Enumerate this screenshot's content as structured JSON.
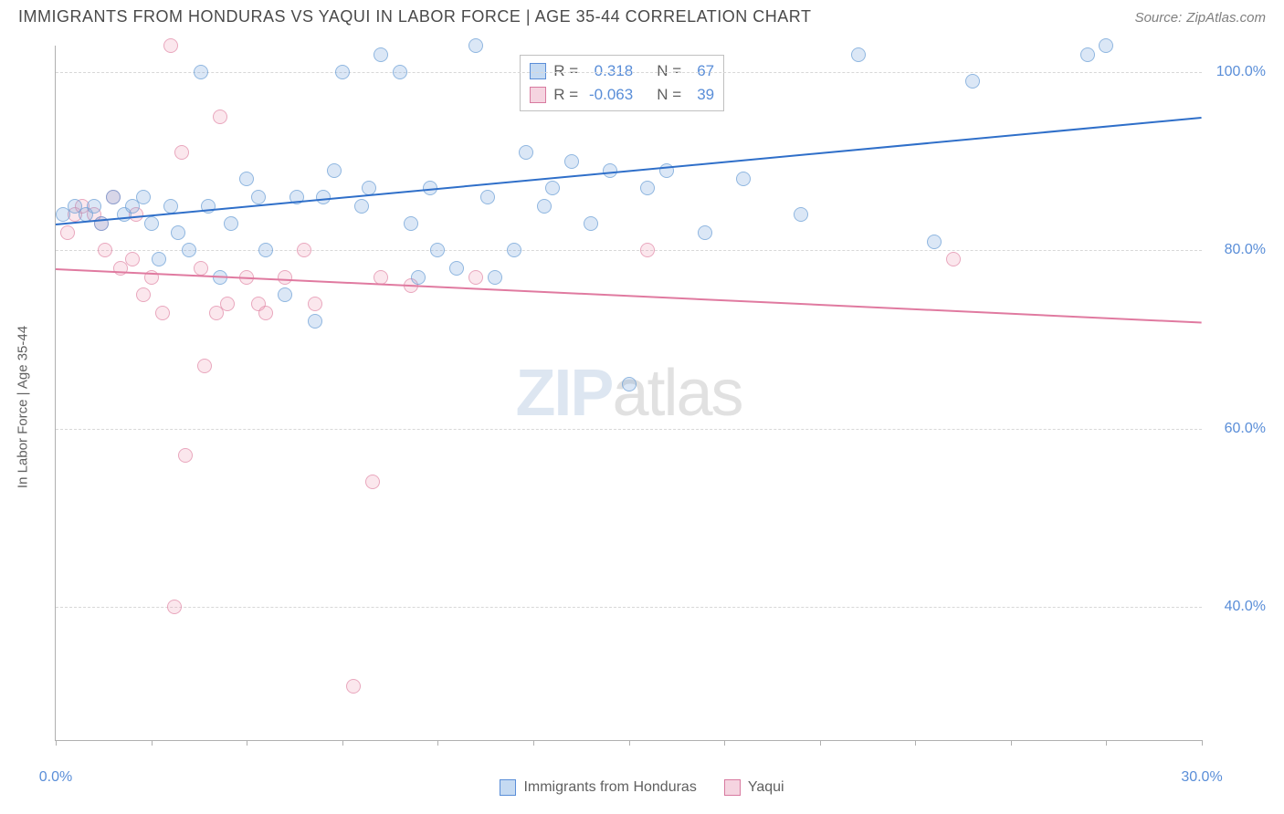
{
  "header": {
    "title": "IMMIGRANTS FROM HONDURAS VS YAQUI IN LABOR FORCE | AGE 35-44 CORRELATION CHART",
    "source_label": "Source:",
    "source_name": "ZipAtlas.com"
  },
  "chart": {
    "type": "scatter",
    "y_axis_title": "In Labor Force | Age 35-44",
    "xlim": [
      0,
      30
    ],
    "ylim": [
      25,
      103
    ],
    "x_ticks_minor": [
      0,
      2.5,
      5,
      7.5,
      10,
      12.5,
      15,
      17.5,
      20,
      22.5,
      25,
      27.5,
      30
    ],
    "x_tick_labels": [
      {
        "x": 0,
        "label": "0.0%"
      },
      {
        "x": 30,
        "label": "30.0%"
      }
    ],
    "y_gridlines": [
      40,
      60,
      80,
      100
    ],
    "y_tick_labels": [
      {
        "y": 40,
        "label": "40.0%"
      },
      {
        "y": 60,
        "label": "60.0%"
      },
      {
        "y": 80,
        "label": "80.0%"
      },
      {
        "y": 100,
        "label": "100.0%"
      }
    ],
    "background_color": "#ffffff",
    "grid_color": "#d8d8d8"
  },
  "series_blue": {
    "name": "Immigrants from Honduras",
    "color_fill": "#c5daf2",
    "color_stroke": "#6a9ed6",
    "R": "0.318",
    "N": "67",
    "trend": {
      "x0": 0,
      "y0": 83,
      "x1": 30,
      "y1": 95,
      "color": "#2f6fc9"
    },
    "points": [
      [
        0.2,
        84
      ],
      [
        0.5,
        85
      ],
      [
        0.8,
        84
      ],
      [
        1.0,
        85
      ],
      [
        1.2,
        83
      ],
      [
        1.5,
        86
      ],
      [
        1.8,
        84
      ],
      [
        2.0,
        85
      ],
      [
        2.3,
        86
      ],
      [
        2.5,
        83
      ],
      [
        2.7,
        79
      ],
      [
        3.0,
        85
      ],
      [
        3.2,
        82
      ],
      [
        3.5,
        80
      ],
      [
        3.8,
        100
      ],
      [
        4.0,
        85
      ],
      [
        4.3,
        77
      ],
      [
        4.6,
        83
      ],
      [
        5.0,
        88
      ],
      [
        5.3,
        86
      ],
      [
        5.5,
        80
      ],
      [
        6.0,
        75
      ],
      [
        6.3,
        86
      ],
      [
        6.8,
        72
      ],
      [
        7.0,
        86
      ],
      [
        7.3,
        89
      ],
      [
        7.5,
        100
      ],
      [
        8.0,
        85
      ],
      [
        8.2,
        87
      ],
      [
        8.5,
        102
      ],
      [
        9.0,
        100
      ],
      [
        9.3,
        83
      ],
      [
        9.5,
        77
      ],
      [
        9.8,
        87
      ],
      [
        10.0,
        80
      ],
      [
        10.5,
        78
      ],
      [
        11.0,
        103
      ],
      [
        11.3,
        86
      ],
      [
        11.5,
        77
      ],
      [
        12.0,
        80
      ],
      [
        12.3,
        91
      ],
      [
        12.8,
        85
      ],
      [
        13.0,
        87
      ],
      [
        13.5,
        90
      ],
      [
        14.0,
        83
      ],
      [
        14.5,
        89
      ],
      [
        15.0,
        65
      ],
      [
        15.5,
        87
      ],
      [
        16.0,
        89
      ],
      [
        17.0,
        82
      ],
      [
        18.0,
        88
      ],
      [
        19.5,
        84
      ],
      [
        21.0,
        102
      ],
      [
        23.0,
        81
      ],
      [
        24.0,
        99
      ],
      [
        27.0,
        102
      ],
      [
        27.5,
        103
      ]
    ]
  },
  "series_pink": {
    "name": "Yaqui",
    "color_fill": "#f5d4e0",
    "color_stroke": "#e28aa8",
    "R": "-0.063",
    "N": "39",
    "trend": {
      "x0": 0,
      "y0": 78,
      "x1": 30,
      "y1": 72,
      "color": "#e07aa0"
    },
    "points": [
      [
        0.3,
        82
      ],
      [
        0.5,
        84
      ],
      [
        0.7,
        85
      ],
      [
        1.0,
        84
      ],
      [
        1.2,
        83
      ],
      [
        1.3,
        80
      ],
      [
        1.5,
        86
      ],
      [
        1.7,
        78
      ],
      [
        2.0,
        79
      ],
      [
        2.1,
        84
      ],
      [
        2.3,
        75
      ],
      [
        2.5,
        77
      ],
      [
        2.8,
        73
      ],
      [
        3.0,
        103
      ],
      [
        3.1,
        40
      ],
      [
        3.3,
        91
      ],
      [
        3.4,
        57
      ],
      [
        3.8,
        78
      ],
      [
        3.9,
        67
      ],
      [
        4.2,
        73
      ],
      [
        4.3,
        95
      ],
      [
        4.5,
        74
      ],
      [
        5.0,
        77
      ],
      [
        5.3,
        74
      ],
      [
        5.5,
        73
      ],
      [
        6.0,
        77
      ],
      [
        6.5,
        80
      ],
      [
        6.8,
        74
      ],
      [
        7.8,
        31
      ],
      [
        8.3,
        54
      ],
      [
        8.5,
        77
      ],
      [
        9.3,
        76
      ],
      [
        11.0,
        77
      ],
      [
        15.5,
        80
      ],
      [
        23.5,
        79
      ]
    ]
  },
  "stats_box": {
    "rows": [
      {
        "swatch": "blue",
        "r_label": "R =",
        "r_val": "0.318",
        "n_label": "N =",
        "n_val": "67"
      },
      {
        "swatch": "pink",
        "r_label": "R =",
        "r_val": "-0.063",
        "n_label": "N =",
        "n_val": "39"
      }
    ]
  },
  "legend": {
    "items": [
      {
        "swatch": "blue",
        "label": "Immigrants from Honduras"
      },
      {
        "swatch": "pink",
        "label": "Yaqui"
      }
    ]
  },
  "watermark": {
    "zip": "ZIP",
    "atlas": "atlas"
  }
}
